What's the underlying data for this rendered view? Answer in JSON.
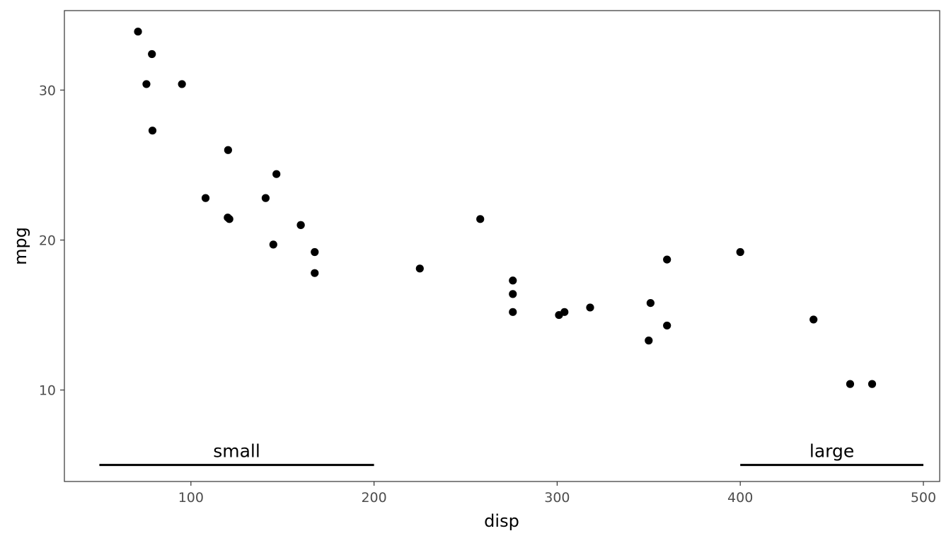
{
  "chart_data": {
    "type": "scatter",
    "xlabel": "disp",
    "ylabel": "mpg",
    "xlim": [
      30.9,
      508.9
    ],
    "ylim": [
      3.9,
      35.3
    ],
    "x_ticks": [
      100,
      200,
      300,
      400,
      500
    ],
    "y_ticks": [
      10,
      20,
      30
    ],
    "grid": false,
    "points": [
      {
        "x": 160,
        "y": 21.0
      },
      {
        "x": 160,
        "y": 21.0
      },
      {
        "x": 108,
        "y": 22.8
      },
      {
        "x": 258,
        "y": 21.4
      },
      {
        "x": 360,
        "y": 18.7
      },
      {
        "x": 225,
        "y": 18.1
      },
      {
        "x": 360,
        "y": 14.3
      },
      {
        "x": 146.7,
        "y": 24.4
      },
      {
        "x": 140.8,
        "y": 22.8
      },
      {
        "x": 167.6,
        "y": 19.2
      },
      {
        "x": 167.6,
        "y": 17.8
      },
      {
        "x": 275.8,
        "y": 16.4
      },
      {
        "x": 275.8,
        "y": 17.3
      },
      {
        "x": 275.8,
        "y": 15.2
      },
      {
        "x": 472,
        "y": 10.4
      },
      {
        "x": 460,
        "y": 10.4
      },
      {
        "x": 440,
        "y": 14.7
      },
      {
        "x": 78.7,
        "y": 32.4
      },
      {
        "x": 75.7,
        "y": 30.4
      },
      {
        "x": 71.1,
        "y": 33.9
      },
      {
        "x": 120.1,
        "y": 21.5
      },
      {
        "x": 318,
        "y": 15.5
      },
      {
        "x": 304,
        "y": 15.2
      },
      {
        "x": 350,
        "y": 13.3
      },
      {
        "x": 400,
        "y": 19.2
      },
      {
        "x": 79,
        "y": 27.3
      },
      {
        "x": 120.3,
        "y": 26.0
      },
      {
        "x": 95.1,
        "y": 30.4
      },
      {
        "x": 351,
        "y": 15.8
      },
      {
        "x": 145,
        "y": 19.7
      },
      {
        "x": 301,
        "y": 15.0
      },
      {
        "x": 121,
        "y": 21.4
      }
    ],
    "annotations": [
      {
        "label": "small",
        "x_start": 50,
        "x_end": 200,
        "y": 5
      },
      {
        "label": "large",
        "x_start": 400,
        "x_end": 500,
        "y": 5
      }
    ]
  }
}
